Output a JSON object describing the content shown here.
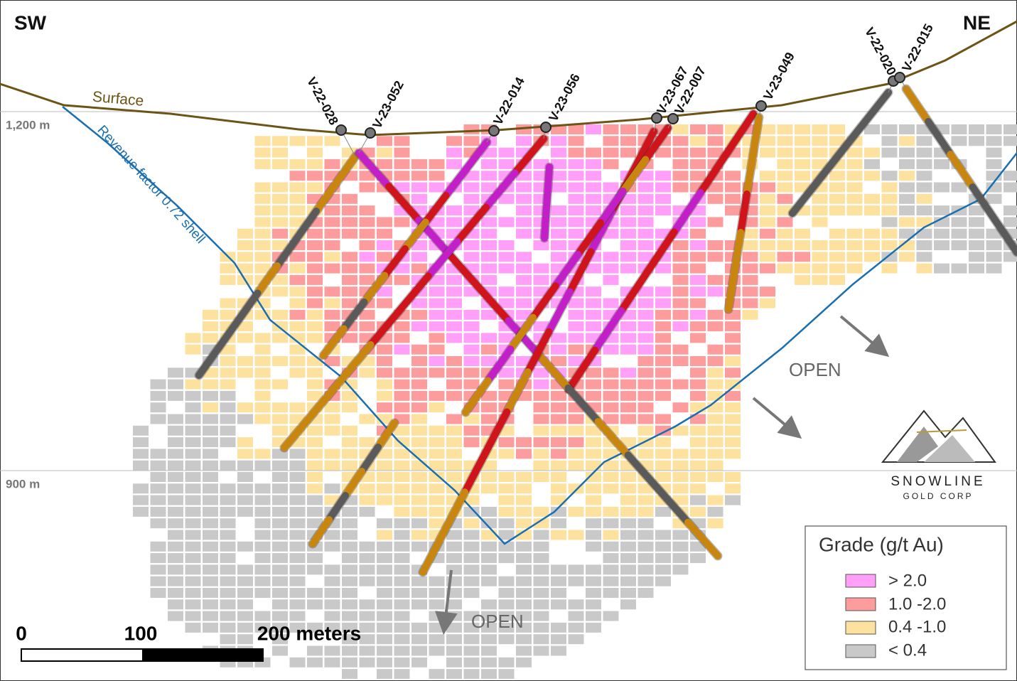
{
  "header": {
    "left": "SW",
    "right": "NE"
  },
  "elevations": [
    "1,200 m",
    "900 m"
  ],
  "surface_label": "Surface",
  "shell_label": "Revenue factor 0.72 shell",
  "drill_holes": [
    "V-22-028",
    "V-23-052",
    "V-22-014",
    "V-23-056",
    "V-23-067",
    "V-22-007",
    "V-23-049",
    "V-22-020",
    "V-22-015"
  ],
  "open_labels": [
    "OPEN",
    "OPEN"
  ],
  "legend": {
    "title": "Grade (g/t Au)",
    "items": [
      "> 2.0",
      "1.0 -2.0",
      "0.4 -1.0",
      "< 0.4"
    ]
  },
  "scale_bar": {
    "labels": [
      "0",
      "100",
      "200 meters"
    ]
  },
  "logo": {
    "name": "SNOWLINE",
    "sub": "GOLD CORP"
  }
}
